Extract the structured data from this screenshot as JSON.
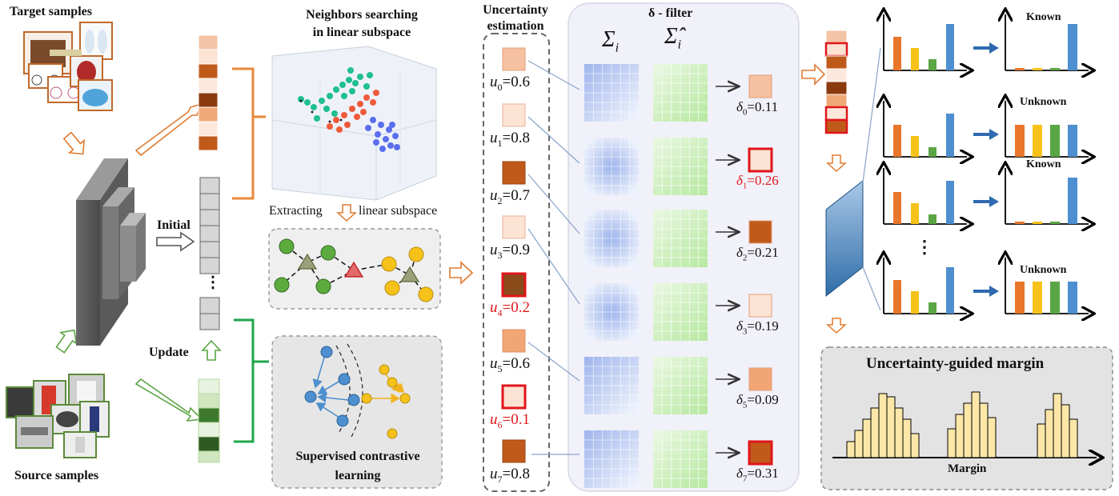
{
  "left": {
    "target_title": "Target samples",
    "source_title": "Source samples",
    "initial_label": "Initial",
    "update_label": "Update",
    "ellipsis": "⋮"
  },
  "middle": {
    "neighbors_title_line1": "Neighbors searching",
    "neighbors_title_line2": "in linear subspace",
    "extracting_label": "Extracting",
    "linear_subspace_label": "linear subspace",
    "contrastive_line1": "Supervised contrastive",
    "contrastive_line2": "learning"
  },
  "uncertainty": {
    "title_line1": "Uncertainty",
    "title_line2": "estimation",
    "items": [
      {
        "sym": "u",
        "sub": "0",
        "val": "=0.6",
        "flag": false
      },
      {
        "sym": "u",
        "sub": "1",
        "val": "=0.8",
        "flag": false
      },
      {
        "sym": "u",
        "sub": "2",
        "val": "=0.7",
        "flag": false
      },
      {
        "sym": "u",
        "sub": "3",
        "val": "=0.9",
        "flag": false
      },
      {
        "sym": "u",
        "sub": "4",
        "val": "=0.2",
        "flag": true
      },
      {
        "sym": "u",
        "sub": "5",
        "val": "=0.6",
        "flag": false
      },
      {
        "sym": "u",
        "sub": "6",
        "val": "=0.1",
        "flag": true
      },
      {
        "sym": "u",
        "sub": "7",
        "val": "=0.8",
        "flag": false
      }
    ]
  },
  "filter": {
    "title": "δ - filter",
    "sigma": "Σ",
    "sigma_sub": "i",
    "sigma_hat": "Σ̂",
    "items": [
      {
        "sym": "δ",
        "sub": "0",
        "val": "=0.11",
        "flag": false
      },
      {
        "sym": "δ",
        "sub": "1",
        "val": "=0.26",
        "flag": true
      },
      {
        "sym": "δ",
        "sub": "2",
        "val": "=0.21",
        "flag": false
      },
      {
        "sym": "δ",
        "sub": "3",
        "val": "=0.19",
        "flag": false
      },
      {
        "sym": "δ",
        "sub": "5",
        "val": "=0.09",
        "flag": false
      },
      {
        "sym": "δ",
        "sub": "7",
        "val": "=0.31",
        "flag": true
      }
    ]
  },
  "right": {
    "known_1": "Known",
    "unknown_1": "Unknown",
    "known_2": "Known",
    "unknown_2": "Unknown",
    "ellipsis": "⋮",
    "margin_title": "Uncertainty-guided margin",
    "margin_axis": "Margin"
  },
  "colors": {
    "orange_dark": "#c05a1a",
    "orange_mid": "#f0a878",
    "orange_light": "#fde3d3",
    "brown": "#8b3a0e",
    "red": "#e0161a",
    "green_line": "#1ea54b",
    "orange_line": "#e8883a",
    "bar_orange": "#e8762b",
    "bar_yellow": "#f6c21a",
    "bar_green": "#5aa544",
    "bar_blue": "#4d8fcf"
  }
}
